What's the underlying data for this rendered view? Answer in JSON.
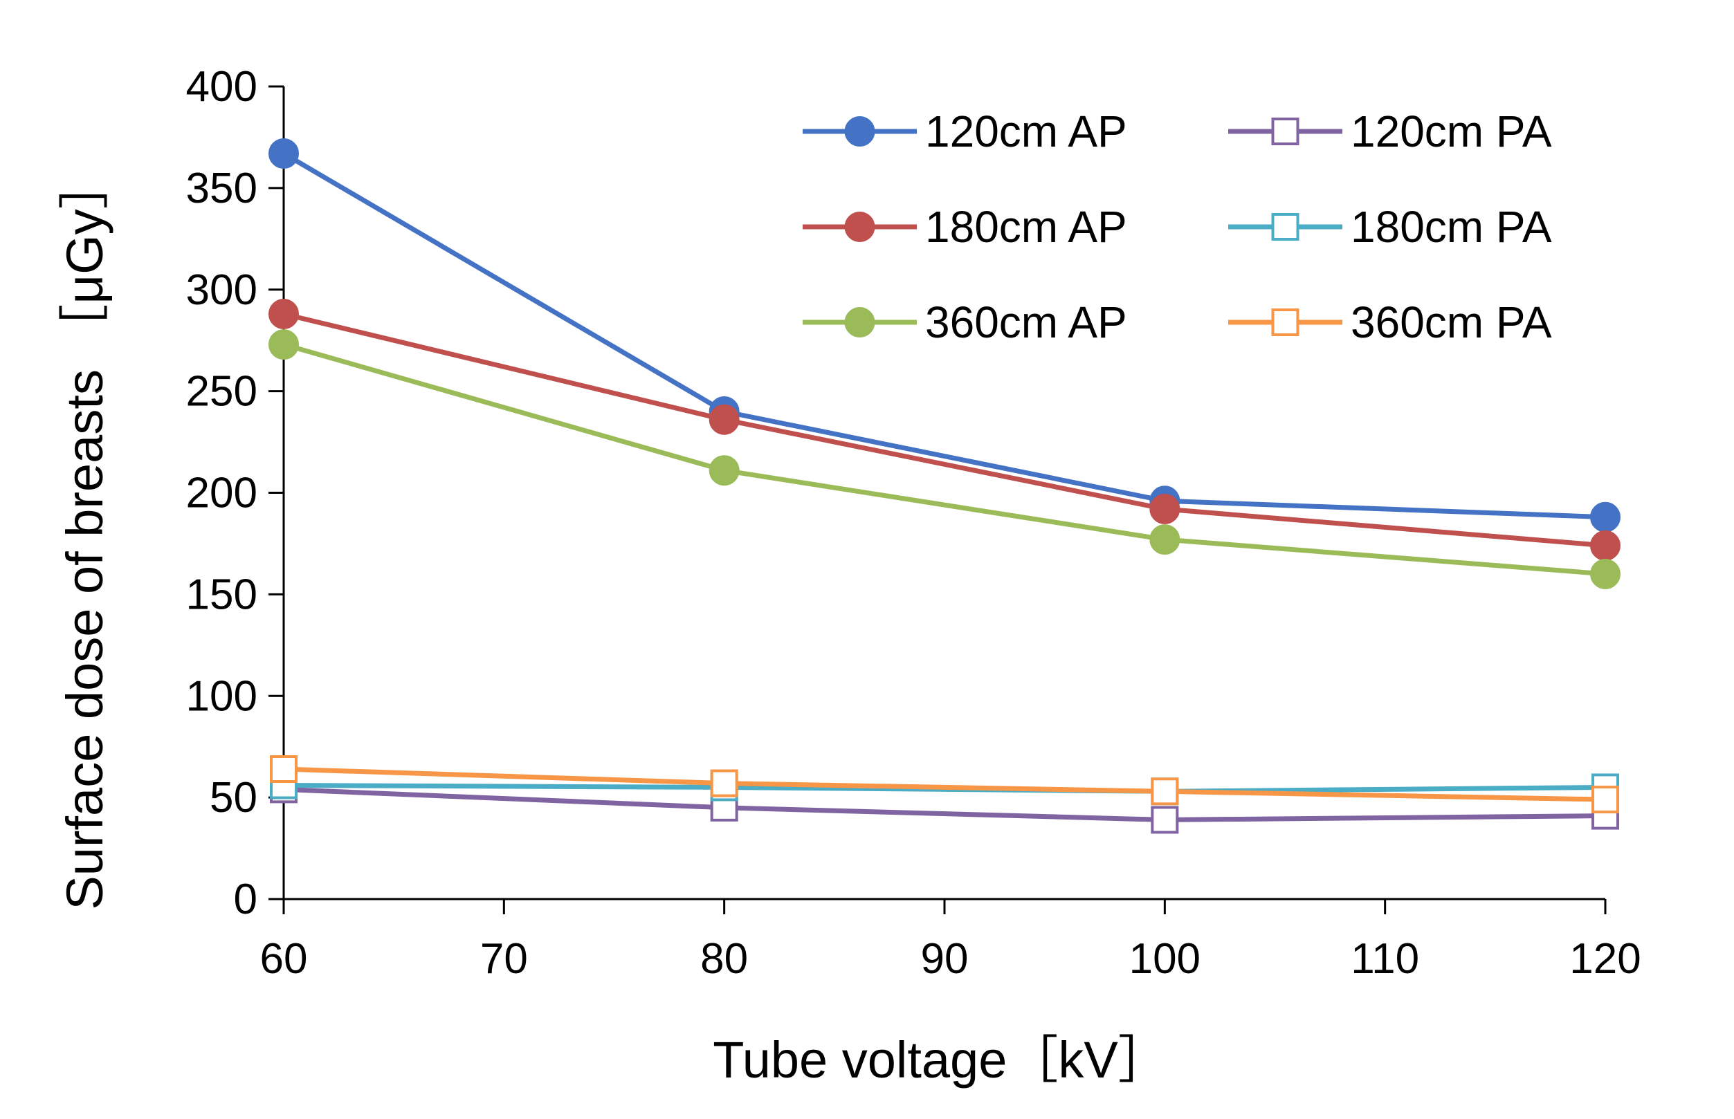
{
  "chart_data": {
    "type": "line",
    "title": "",
    "xlabel": "Tube voltage［kV］",
    "ylabel": "Surface dose of breasts ［μGy］",
    "xlim": [
      60,
      120
    ],
    "ylim": [
      0,
      400
    ],
    "xticks": [
      60,
      70,
      80,
      90,
      100,
      110,
      120
    ],
    "yticks": [
      0,
      50,
      100,
      150,
      200,
      250,
      300,
      350,
      400
    ],
    "x": [
      60,
      80,
      100,
      120
    ],
    "grid": false,
    "legend_position": "top-right",
    "series": [
      {
        "name": "120cm AP",
        "marker": "filled-circle",
        "color": "#4472C4",
        "values": [
          367,
          240,
          196,
          188
        ]
      },
      {
        "name": "180cm AP",
        "marker": "filled-circle",
        "color": "#C0504D",
        "values": [
          288,
          236,
          192,
          174
        ]
      },
      {
        "name": "360cm AP",
        "marker": "filled-circle",
        "color": "#9BBB59",
        "values": [
          273,
          211,
          177,
          160
        ]
      },
      {
        "name": "120cm PA",
        "marker": "open-square",
        "color": "#8064A2",
        "values": [
          54,
          45,
          39,
          41
        ]
      },
      {
        "name": "180cm PA",
        "marker": "open-square",
        "color": "#4BACC6",
        "values": [
          56,
          55,
          53,
          55
        ]
      },
      {
        "name": "360cm PA",
        "marker": "open-square",
        "color": "#F79646",
        "values": [
          64,
          57,
          53,
          49
        ]
      }
    ]
  }
}
